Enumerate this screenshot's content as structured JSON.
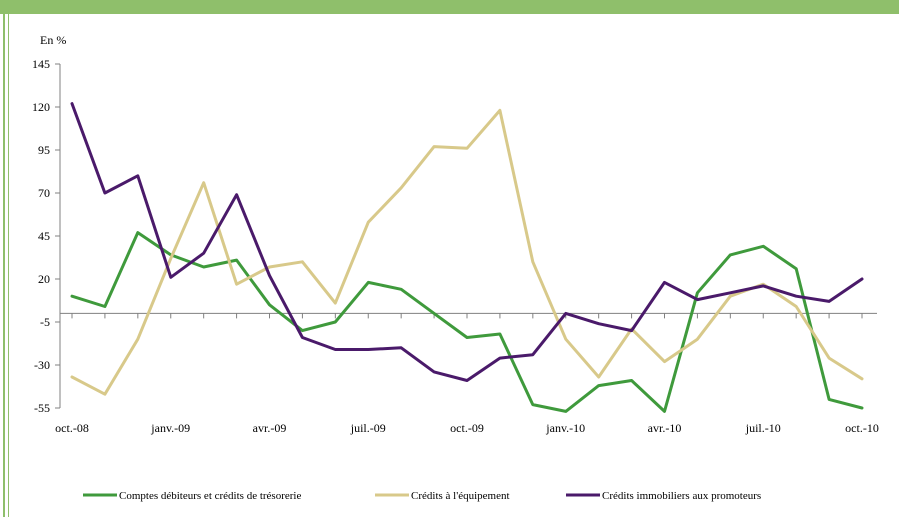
{
  "chart_data": {
    "type": "line",
    "ylabel": "En %",
    "ylim": [
      -55,
      145
    ],
    "yticks": [
      145,
      120,
      95,
      70,
      45,
      20,
      -5,
      -30,
      -55
    ],
    "grid": false,
    "legend_position": "bottom",
    "x_tick_labels": [
      "oct.-08",
      "janv.-09",
      "avr.-09",
      "juil.-09",
      "oct.-09",
      "janv.-10",
      "avr.-10",
      "juil.-10",
      "oct.-10"
    ],
    "x_tick_indices": [
      0,
      3,
      6,
      9,
      12,
      15,
      18,
      21,
      24
    ],
    "x": [
      "oct.-08",
      "nov.-08",
      "déc.-08",
      "janv.-09",
      "févr.-09",
      "mars-09",
      "avr.-09",
      "mai-09",
      "juin-09",
      "juil.-09",
      "août-09",
      "sept.-09",
      "oct.-09",
      "nov.-09",
      "déc.-09",
      "janv.-10",
      "févr.-10",
      "mars-10",
      "avr.-10",
      "mai-10",
      "juin-10",
      "juil.-10",
      "août-10",
      "sept.-10",
      "oct.-10"
    ],
    "series": [
      {
        "name": "Comptes débiteurs et crédits de trésorerie",
        "color": "#3f9a3c",
        "values": [
          10,
          4,
          47,
          34,
          27,
          31,
          5,
          -10,
          -5,
          18,
          14,
          0,
          -14,
          -12,
          -53,
          -57,
          -42,
          -39,
          -57,
          12,
          34,
          39,
          26,
          -50,
          -55
        ]
      },
      {
        "name": "Crédits à l'équipement",
        "color": "#d8c98a",
        "values": [
          -37,
          -47,
          -15,
          32,
          76,
          17,
          27,
          30,
          6,
          53,
          73,
          97,
          96,
          118,
          30,
          -15,
          -37,
          -9,
          -28,
          -15,
          10,
          17,
          4,
          -26,
          -38
        ]
      },
      {
        "name": "Crédits immobiliers aux promoteurs",
        "color": "#4a1a6a",
        "values": [
          122,
          70,
          80,
          21,
          35,
          69,
          22,
          -14,
          -21,
          -21,
          -20,
          -34,
          -39,
          -26,
          -24,
          0,
          -6,
          -10,
          18,
          8,
          12,
          16,
          10,
          7,
          20
        ]
      }
    ]
  }
}
